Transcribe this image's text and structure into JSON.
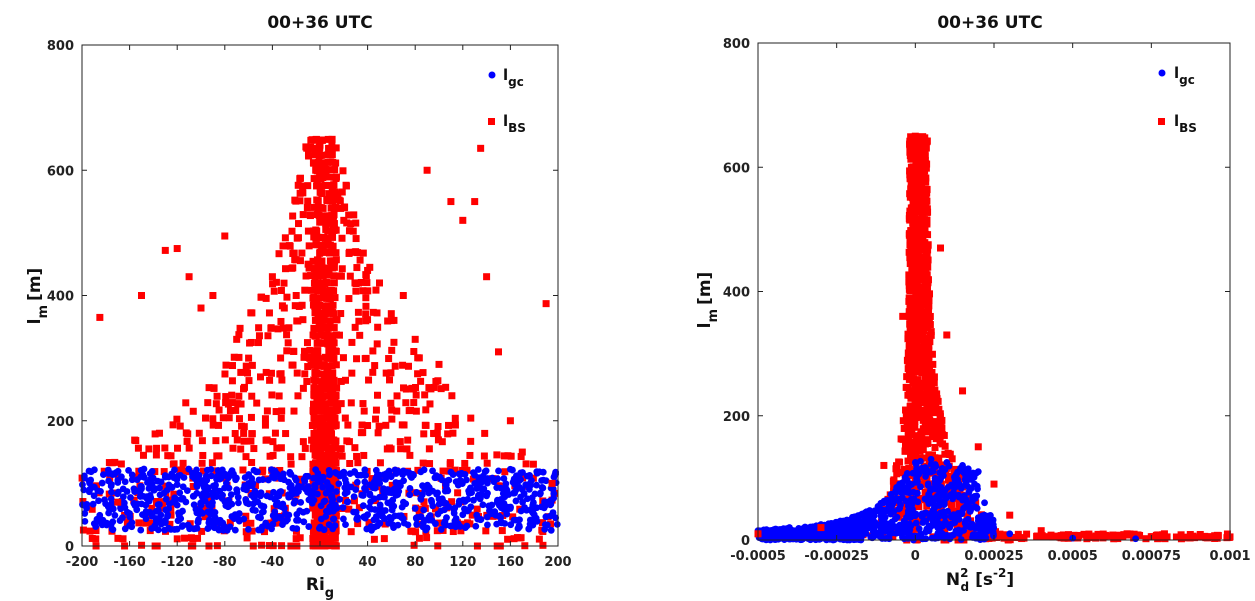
{
  "chart_data": [
    {
      "type": "scatter",
      "title": "00+36 UTC",
      "xlabel": "Ri",
      "xlabel_sub": "g",
      "ylabel": "l",
      "ylabel_sub": "m",
      "ylabel_unit": "[m]",
      "xlim": [
        -200,
        200
      ],
      "ylim": [
        0,
        800
      ],
      "xticks": [
        "-200",
        "-160",
        "-120",
        "-80",
        "-40",
        "0",
        "40",
        "80",
        "120",
        "160",
        "200"
      ],
      "xtick_values": [
        -200,
        -160,
        -120,
        -80,
        -40,
        0,
        40,
        80,
        120,
        160,
        200
      ],
      "yticks": [
        "0",
        "200",
        "400",
        "600",
        "800"
      ],
      "ytick_values": [
        0,
        200,
        400,
        600,
        800
      ],
      "grid": false,
      "legend_position": "top-right",
      "series": [
        {
          "name": "l",
          "name_sub": "gc",
          "marker": "circle",
          "color": "#0000ff",
          "description": "dense band between ~25 and 125 m across x from -200 to 200",
          "points": [
            [
              -198,
              112
            ],
            [
              -194,
              104
            ],
            [
              -182,
              114
            ],
            [
              -150,
              95
            ],
            [
              -130,
              110
            ],
            [
              -120,
              98
            ],
            [
              -100,
              100
            ],
            [
              -90,
              85
            ],
            [
              -80,
              115
            ],
            [
              -70,
              90
            ],
            [
              -60,
              100
            ],
            [
              -50,
              80
            ],
            [
              -40,
              112
            ],
            [
              -30,
              60
            ],
            [
              -20,
              105
            ],
            [
              -10,
              95
            ],
            [
              0,
              110
            ],
            [
              10,
              70
            ],
            [
              20,
              118
            ],
            [
              30,
              90
            ],
            [
              40,
              50
            ],
            [
              50,
              105
            ],
            [
              60,
              85
            ],
            [
              70,
              120
            ],
            [
              80,
              60
            ],
            [
              90,
              95
            ],
            [
              100,
              75
            ],
            [
              110,
              118
            ],
            [
              120,
              50
            ],
            [
              130,
              100
            ],
            [
              140,
              80
            ],
            [
              150,
              120
            ],
            [
              160,
              60
            ],
            [
              170,
              90
            ],
            [
              180,
              50
            ],
            [
              190,
              70
            ],
            [
              198,
              118
            ],
            [
              198,
              45
            ]
          ]
        },
        {
          "name": "l",
          "name_sub": "BS",
          "marker": "square",
          "color": "#ff0000",
          "description": "quantized rows of points spreading from 0 to ~645 m, peaked near Ri=0",
          "points": [
            [
              -185,
              365
            ],
            [
              -170,
              70
            ],
            [
              -150,
              400
            ],
            [
              -130,
              472
            ],
            [
              -120,
              475
            ],
            [
              -110,
              430
            ],
            [
              -100,
              380
            ],
            [
              -90,
              400
            ],
            [
              -80,
              495
            ],
            [
              -70,
              330
            ],
            [
              -60,
              300
            ],
            [
              -50,
              270
            ],
            [
              -40,
              430
            ],
            [
              -30,
              380
            ],
            [
              -20,
              400
            ],
            [
              -10,
              450
            ],
            [
              0,
              640
            ],
            [
              5,
              600
            ],
            [
              10,
              645
            ],
            [
              15,
              560
            ],
            [
              20,
              520
            ],
            [
              30,
              470
            ],
            [
              40,
              440
            ],
            [
              50,
              420
            ],
            [
              60,
              360
            ],
            [
              70,
              400
            ],
            [
              80,
              330
            ],
            [
              90,
              600
            ],
            [
              100,
              290
            ],
            [
              110,
              550
            ],
            [
              120,
              520
            ],
            [
              130,
              550
            ],
            [
              135,
              635
            ],
            [
              140,
              430
            ],
            [
              150,
              310
            ],
            [
              160,
              200
            ],
            [
              170,
              150
            ],
            [
              190,
              387
            ],
            [
              195,
              100
            ]
          ]
        }
      ]
    },
    {
      "type": "scatter",
      "title": "00+36 UTC",
      "xlabel": "N",
      "xlabel_sup": "2",
      "xlabel_sub": "d",
      "xlabel_unit": "[s",
      "xlabel_unit_sup": "-2",
      "xlabel_unit_end": "]",
      "ylabel": "l",
      "ylabel_sub": "m",
      "ylabel_unit": "[m]",
      "xlim": [
        -0.0005,
        0.001
      ],
      "ylim": [
        0,
        800
      ],
      "xticks": [
        "-0.0005",
        "-0.00025",
        "0",
        "0.00025",
        "0.0005",
        "0.00075",
        "0.001"
      ],
      "xtick_values": [
        -0.0005,
        -0.00025,
        0,
        0.00025,
        0.0005,
        0.00075,
        0.001
      ],
      "yticks": [
        "0",
        "200",
        "400",
        "600",
        "800"
      ],
      "ytick_values": [
        0,
        200,
        400,
        600,
        800
      ],
      "grid": false,
      "legend_position": "top-right",
      "series": [
        {
          "name": "l",
          "name_sub": "gc",
          "marker": "circle",
          "color": "#0000ff",
          "description": "curve rising from ~15 m at -0.0005 to ~130 m near 0, spread to ~0.0002",
          "points": [
            [
              -0.0005,
              15
            ],
            [
              -0.0004,
              20
            ],
            [
              -0.0003,
              25
            ],
            [
              -0.0002,
              35
            ],
            [
              -0.0001,
              60
            ],
            [
              -5e-05,
              90
            ],
            [
              0,
              125
            ],
            [
              5e-05,
              130
            ],
            [
              0.0001,
              125
            ],
            [
              0.00015,
              120
            ],
            [
              0.0002,
              110
            ],
            [
              0.00022,
              60
            ],
            [
              0.0003,
              10
            ],
            [
              0.0005,
              3
            ],
            [
              0.0007,
              2
            ]
          ]
        },
        {
          "name": "l",
          "name_sub": "BS",
          "marker": "square",
          "color": "#ff0000",
          "description": "spike centered near 0 reaching ~650 m, widening toward the base",
          "points": [
            [
              -0.0005,
              10
            ],
            [
              -0.0003,
              20
            ],
            [
              -0.0001,
              120
            ],
            [
              -4e-05,
              360
            ],
            [
              0,
              650
            ],
            [
              3e-05,
              600
            ],
            [
              8e-05,
              470
            ],
            [
              0.0001,
              330
            ],
            [
              0.00015,
              240
            ],
            [
              0.0002,
              150
            ],
            [
              0.00025,
              90
            ],
            [
              0.0003,
              40
            ],
            [
              0.0004,
              15
            ],
            [
              0.0006,
              6
            ],
            [
              0.0008,
              5
            ],
            [
              0.001,
              5
            ]
          ]
        }
      ]
    }
  ]
}
